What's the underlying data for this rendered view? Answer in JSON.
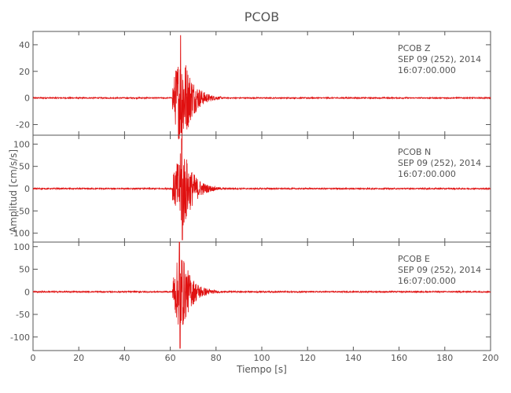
{
  "chart_data": {
    "type": "line",
    "title": "PCOB",
    "xlabel": "Tiempo [s]",
    "ylabel": "Amplitud [cm/s/s]",
    "xlim": [
      0,
      200
    ],
    "xticks": [
      0,
      20,
      40,
      60,
      80,
      100,
      120,
      140,
      160,
      180,
      200
    ],
    "grid": false,
    "panels": [
      {
        "channel": "PCOB   Z",
        "date": "SEP 09 (252), 2014",
        "time": "16:07:00.000",
        "ylim": [
          -28,
          50
        ],
        "yticks": [
          -20,
          0,
          20,
          40
        ],
        "ytick_labels": [
          "-20",
          "0",
          "20",
          "40"
        ],
        "peak_positive": 47,
        "peak_negative": -26,
        "peak_time": 64.5,
        "onset_time": 61
      },
      {
        "channel": "PCOB   N",
        "date": "SEP 09 (252), 2014",
        "time": "16:07:00.000",
        "ylim": [
          -120,
          120
        ],
        "yticks": [
          -100,
          -50,
          0,
          50,
          100
        ],
        "ytick_labels": [
          "-100",
          "-50",
          "0",
          "50",
          "100"
        ],
        "peak_positive": 112,
        "peak_negative": -115,
        "peak_time": 65,
        "onset_time": 61
      },
      {
        "channel": "PCOB   E",
        "date": "SEP 09 (252), 2014",
        "time": "16:07:00.000",
        "ylim": [
          -130,
          110
        ],
        "yticks": [
          -100,
          -50,
          0,
          50,
          100
        ],
        "ytick_labels": [
          "-100",
          "-50",
          "0",
          "50",
          "100"
        ],
        "peak_positive": 110,
        "peak_negative": -125,
        "peak_time": 64,
        "onset_time": 61
      }
    ],
    "colors": {
      "trace": "#e01010",
      "axes": "#555555"
    }
  }
}
